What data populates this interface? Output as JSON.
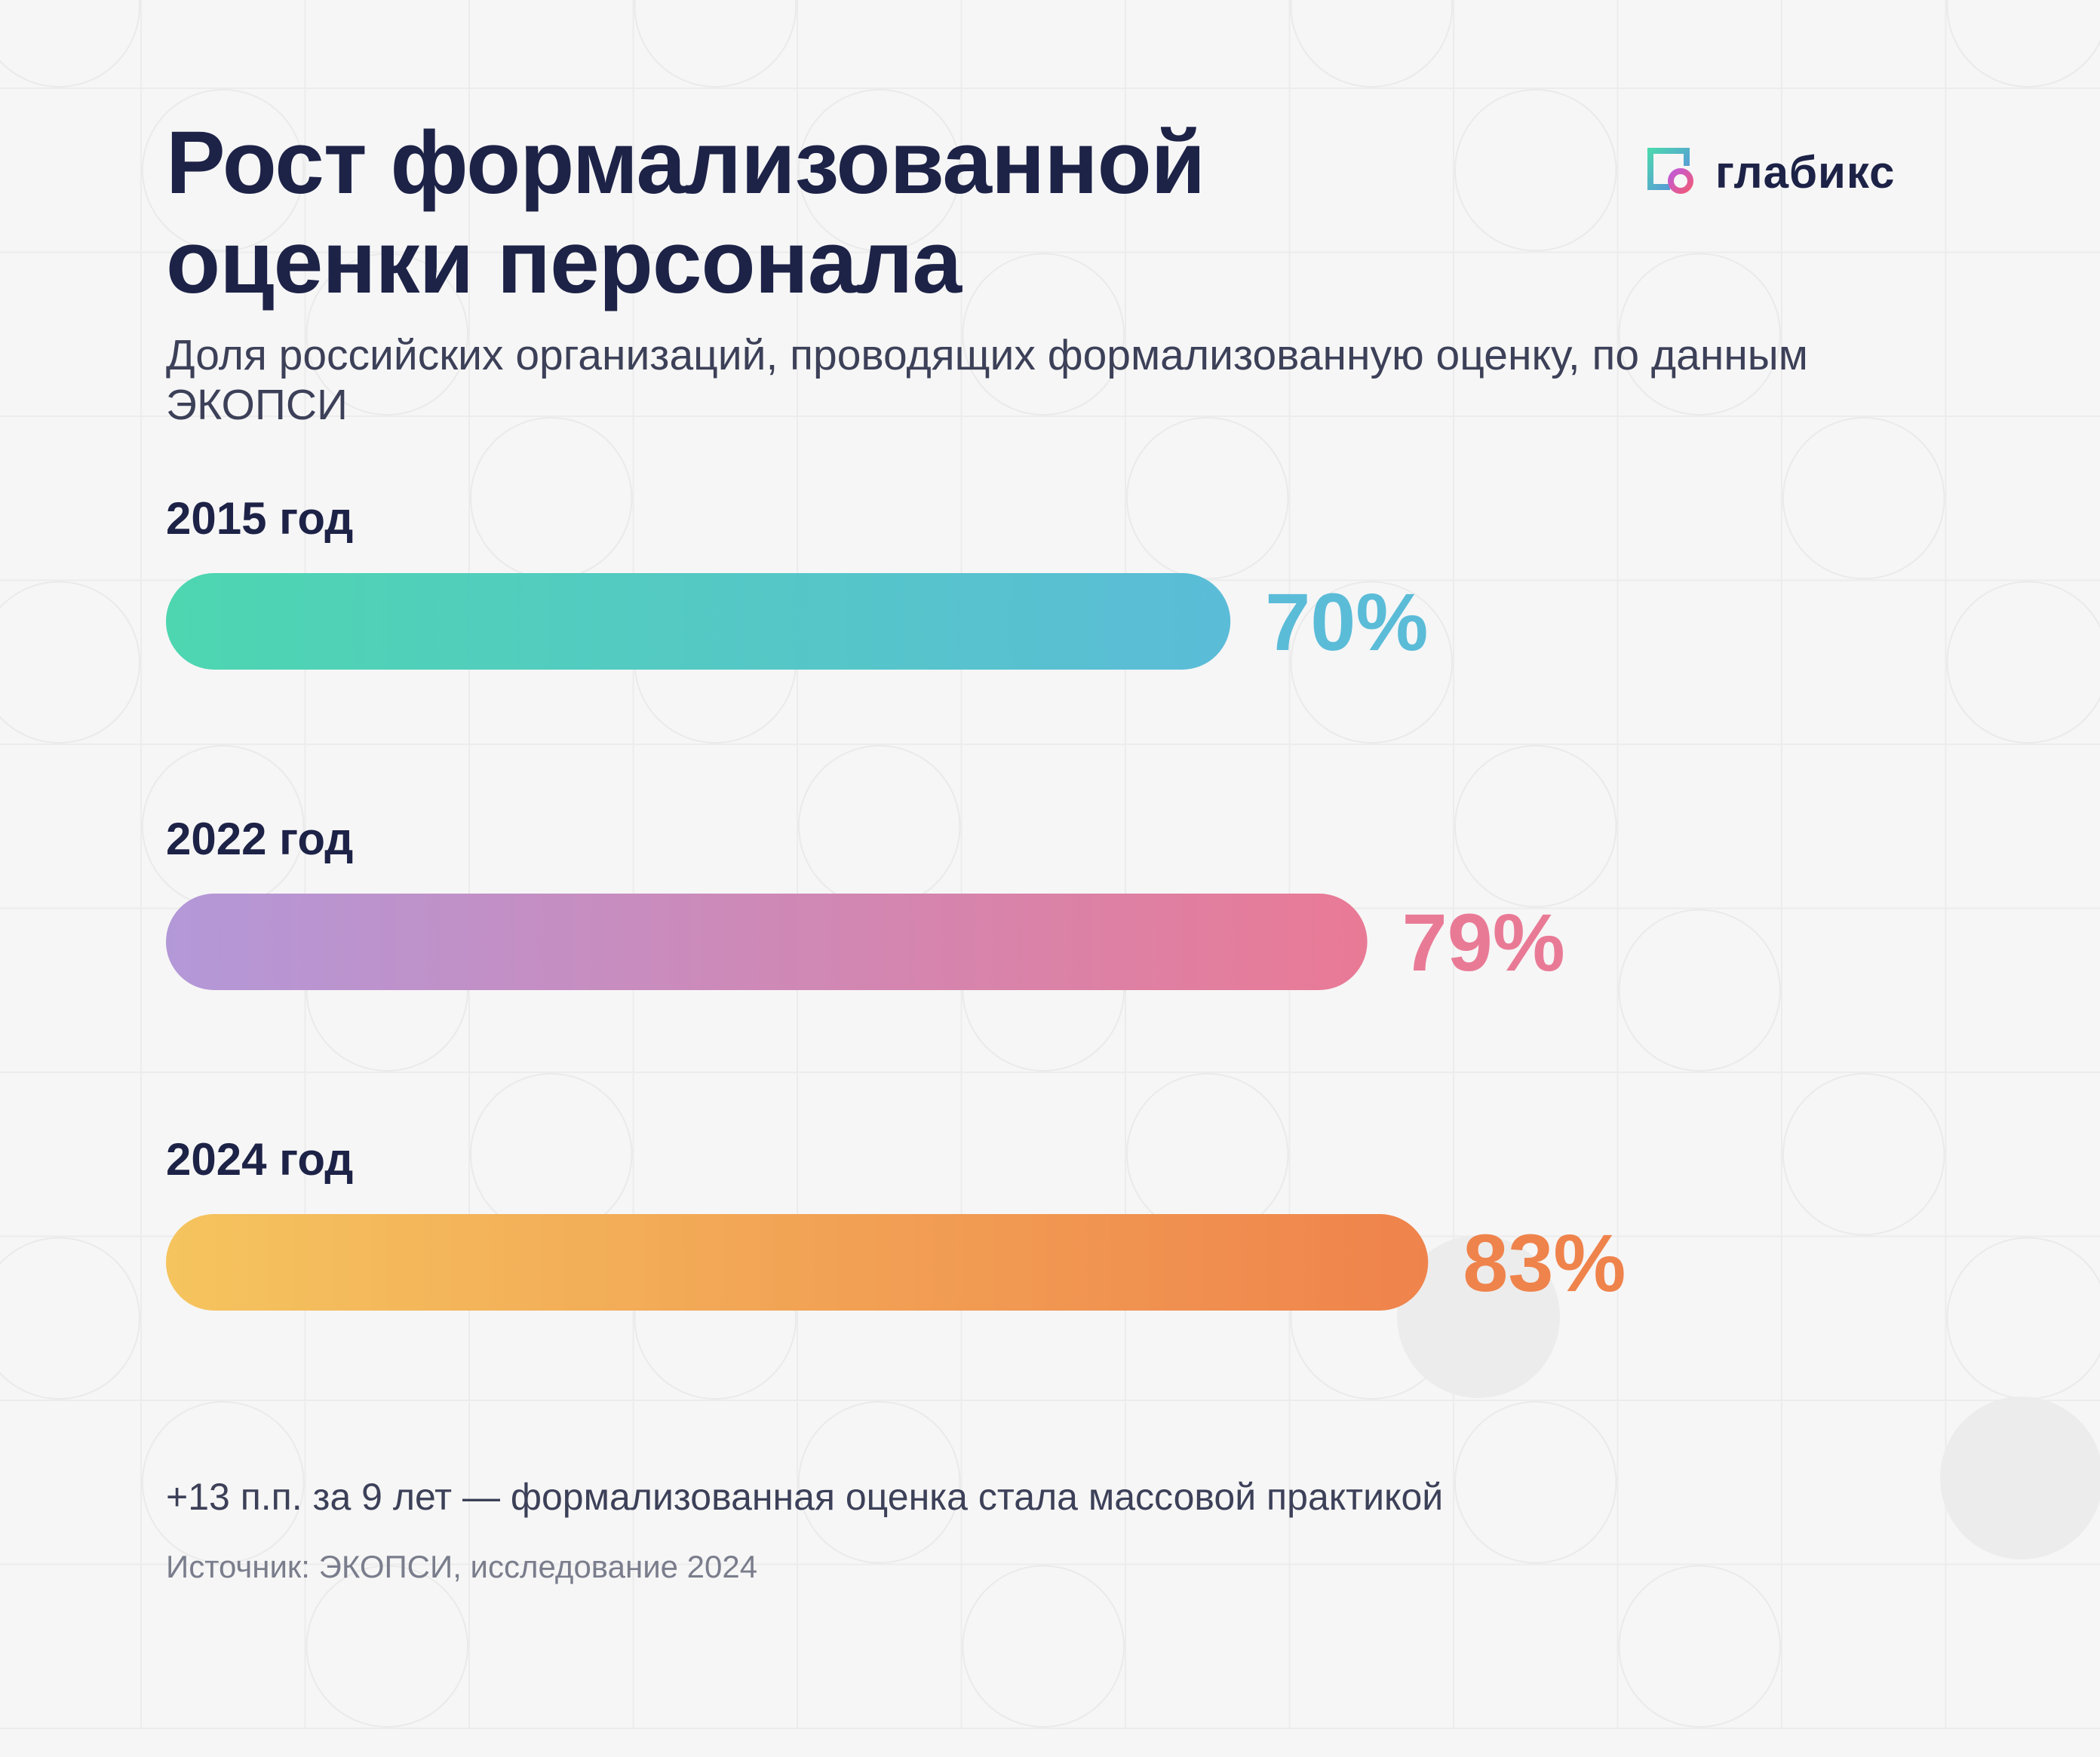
{
  "title_lines": [
    "Рост формализованной",
    "оценки персонала"
  ],
  "subtitle": "Доля российских организаций, проводящих формализованную оценку, по данным ЭКОПСИ",
  "logo": {
    "name": "глабикс",
    "icon": "glabix-logo-icon"
  },
  "chart_data": {
    "type": "bar",
    "orientation": "horizontal",
    "title": "Рост формализованной оценки персонала",
    "categories": [
      "2015 год",
      "2022 год",
      "2024 год"
    ],
    "values": [
      70,
      79,
      83
    ],
    "value_labels": [
      "70%",
      "79%",
      "83%"
    ],
    "unit": "%",
    "grid": false,
    "legend": "none",
    "bar_gradients": [
      {
        "from": "#4dd6b0",
        "to": "#5bbcd8"
      },
      {
        "from": "#b398d8",
        "to": "#e97a96"
      },
      {
        "from": "#f5c45e",
        "to": "#ef834c"
      }
    ],
    "value_colors": [
      "#5bbcd8",
      "#e97a96",
      "#ef834c"
    ]
  },
  "note": "+13 п.п. за 9 лет — формализованная оценка стала массовой практикой",
  "source": "Источник: ЭКОПСИ, исследование 2024"
}
